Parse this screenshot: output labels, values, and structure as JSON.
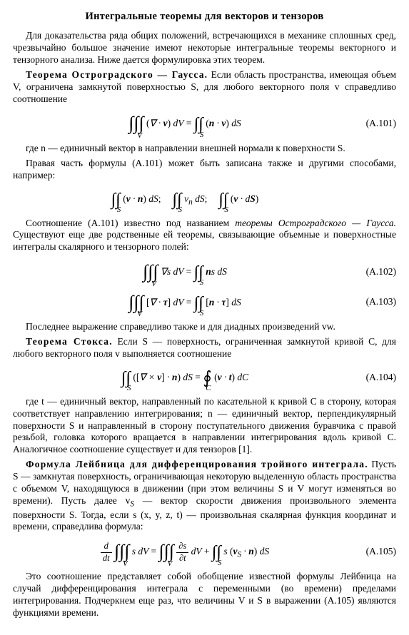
{
  "title": "Интегральные теоремы для векторов и тензоров",
  "p1": "Для доказательства ряда общих положений, встречающихся в механике сплошных сред, чрезвычайно большое значение имеют некоторые интегральные теоремы векторного и тензорного анализа. Ниже дается формулировка этих теорем.",
  "th1_head": "Теорема Остроградского — Гаусса.",
  "th1_body": " Если область пространства, имеющая объем V, ограничена замкнутой поверхностью S, для любого векторного поля v справедливо соотношение",
  "eq101_num": "(A.101)",
  "p2a": "где n — единичный вектор в направлении внешней нормали к поверхности S.",
  "p2b": "Правая часть формулы (A.101) может быть записана также и другими способами, например:",
  "p3a": "Соотношение (A.101) известно под названием ",
  "p3i": "теоремы Остроградского — Гаусса.",
  "p3b": " Существуют еще две родственные ей теоремы, связывающие объемные и поверхностные интегралы скалярного и тензорного полей:",
  "eq102_num": "(A.102)",
  "eq103_num": "(A.103)",
  "p4": "Последнее выражение справедливо также и для диадных произведений vw.",
  "th2_head": "Теорема Стокса.",
  "th2_body": " Если S — поверхность, ограниченная замкнутой кривой C, для любого векторного поля v выполняется соотношение",
  "eq104_num": "(A.104)",
  "p5": "где t — единичный вектор, направленный по касательной к кривой C в сторону, которая соответствует направлению интегрирования; n — единичный вектор, перпендикулярный поверхности S и направленный в сторону поступательного движения буравчика с правой резьбой, головка которого вращается в направлении интегрирования вдоль кривой C. Аналогичное соотношение существует и для тензоров [1].",
  "th3_head": "Формула Лейбница для дифференцирования тройного интеграла.",
  "th3_body": " Пусть S — замкнутая поверхность, ограничивающая некоторую выделенную область пространства с объемом V, находящуюся в движении (при этом величины S и V могут изменяться во времени). Пусть далее v",
  "th3_body_sub": "S",
  "th3_body2": " — вектор скорости движения произвольного элемента поверхности S. Тогда, если s (x, y, z, t) — произвольная скалярная функция координат и времени, справедлива формула:",
  "eq105_num": "(A.105)",
  "p6": "Это соотношение представляет собой обобщение известной формулы Лейбница на случай дифференцирования интеграла с переменными (во времени) пределами интегрирования. Подчеркнем еще раз, что величины V и S в выражении (A.105) являются функциями времени."
}
